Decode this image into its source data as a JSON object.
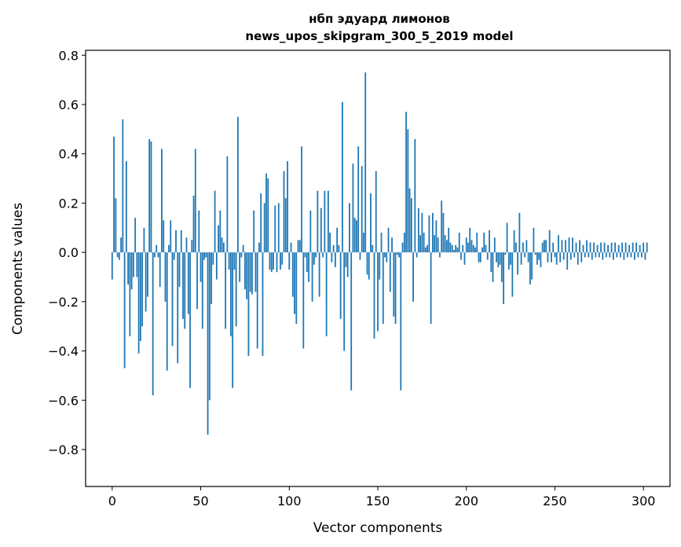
{
  "chart_data": {
    "type": "bar",
    "title_line1": "нбп эдуард лимонов",
    "title_line2": "news_upos_skipgram_300_5_2019 model",
    "xlabel": "Vector components",
    "ylabel": "Components values",
    "xlim": [
      -15,
      315
    ],
    "ylim": [
      -0.95,
      0.82
    ],
    "xticks": [
      0,
      50,
      100,
      150,
      200,
      250,
      300
    ],
    "xtick_labels": [
      "0",
      "50",
      "100",
      "150",
      "200",
      "250",
      "300"
    ],
    "yticks": [
      0.8,
      0.6,
      0.4,
      0.2,
      0.0,
      -0.2,
      -0.4,
      -0.6,
      -0.8
    ],
    "ytick_labels": [
      "0.8",
      "0.6",
      "0.4",
      "0.2",
      "0.0",
      "−0.2",
      "−0.4",
      "−0.6",
      "−0.8"
    ],
    "bar_color": "#1f77b4",
    "values": [
      -0.11,
      0.47,
      0.22,
      -0.02,
      -0.03,
      0.06,
      0.54,
      -0.47,
      0.37,
      -0.13,
      -0.34,
      -0.15,
      -0.1,
      0.14,
      -0.1,
      -0.41,
      -0.36,
      -0.3,
      0.1,
      -0.24,
      -0.18,
      0.46,
      0.45,
      -0.58,
      -0.02,
      0.03,
      -0.02,
      -0.14,
      0.42,
      0.13,
      -0.2,
      -0.48,
      0.03,
      0.13,
      -0.38,
      -0.03,
      0.09,
      -0.45,
      -0.14,
      0.09,
      -0.27,
      -0.31,
      0.06,
      -0.25,
      -0.55,
      0.05,
      0.23,
      0.42,
      -0.23,
      0.17,
      -0.12,
      -0.31,
      -0.03,
      -0.02,
      -0.74,
      -0.6,
      -0.21,
      -0.05,
      0.25,
      -0.11,
      0.11,
      0.17,
      0.06,
      0.04,
      -0.31,
      0.39,
      -0.07,
      -0.34,
      -0.55,
      -0.07,
      -0.3,
      0.55,
      -0.12,
      -0.02,
      0.03,
      -0.15,
      -0.19,
      -0.42,
      -0.16,
      -0.17,
      0.17,
      -0.16,
      -0.39,
      0.04,
      0.24,
      -0.42,
      0.2,
      0.32,
      0.3,
      -0.07,
      -0.08,
      -0.07,
      0.19,
      -0.08,
      0.2,
      -0.07,
      -0.05,
      0.33,
      0.22,
      0.37,
      -0.07,
      0.04,
      -0.18,
      -0.25,
      -0.29,
      0.05,
      0.05,
      0.43,
      -0.39,
      -0.02,
      -0.08,
      -0.12,
      0.17,
      -0.2,
      -0.05,
      -0.02,
      0.25,
      -0.18,
      0.18,
      -0.02,
      0.25,
      -0.34,
      0.25,
      0.08,
      -0.04,
      0.03,
      -0.06,
      0.1,
      0.03,
      -0.27,
      0.61,
      -0.4,
      -0.06,
      -0.1,
      0.2,
      -0.56,
      0.36,
      0.14,
      0.13,
      0.43,
      -0.03,
      0.35,
      0.08,
      0.73,
      -0.09,
      -0.11,
      0.24,
      0.03,
      -0.35,
      0.33,
      -0.32,
      -0.11,
      0.08,
      -0.29,
      -0.02,
      -0.04,
      0.1,
      -0.16,
      0.06,
      -0.26,
      -0.29,
      -0.01,
      -0.02,
      -0.56,
      0.04,
      0.08,
      0.57,
      0.5,
      0.26,
      0.22,
      -0.2,
      0.46,
      -0.02,
      0.18,
      0.07,
      0.16,
      0.08,
      0.02,
      0.03,
      0.15,
      -0.29,
      0.16,
      0.07,
      0.13,
      0.06,
      -0.02,
      0.21,
      0.16,
      0.07,
      0.05,
      0.1,
      0.04,
      0.03,
      0.01,
      0.03,
      0.02,
      0.08,
      -0.03,
      0.03,
      -0.05,
      0.06,
      0.04,
      0.1,
      0.05,
      0.03,
      0.02,
      0.08,
      -0.04,
      -0.04,
      0.02,
      0.08,
      0.03,
      -0.03,
      0.09,
      -0.08,
      -0.12,
      0.06,
      -0.04,
      -0.06,
      -0.05,
      -0.12,
      -0.21,
      -0.01,
      0.12,
      -0.07,
      -0.05,
      -0.18,
      0.09,
      0.04,
      -0.09,
      0.16,
      -0.05,
      0.04,
      -0.02,
      0.05,
      -0.04,
      -0.13,
      -0.11,
      0.1,
      -0.01,
      -0.05,
      -0.03,
      -0.06,
      0.04,
      0.05,
      0.05,
      -0.04,
      0.09,
      -0.04,
      0.04,
      -0.02,
      -0.05,
      0.07,
      -0.04,
      0.05,
      -0.03,
      0.05,
      -0.07,
      0.06,
      -0.03,
      0.06,
      -0.02,
      0.04,
      -0.05,
      0.05,
      -0.04,
      0.03,
      -0.02,
      0.05,
      -0.02,
      0.04,
      -0.03,
      0.04,
      -0.02,
      0.03,
      -0.02,
      0.04,
      -0.03,
      0.04,
      -0.02,
      0.03,
      -0.02,
      0.04,
      -0.03,
      0.04,
      -0.02,
      0.03,
      -0.02,
      0.04,
      -0.03,
      0.04,
      -0.02,
      0.03,
      -0.02,
      0.04,
      -0.03,
      0.04,
      -0.02,
      0.03,
      -0.02,
      0.04,
      -0.03,
      0.04
    ]
  }
}
